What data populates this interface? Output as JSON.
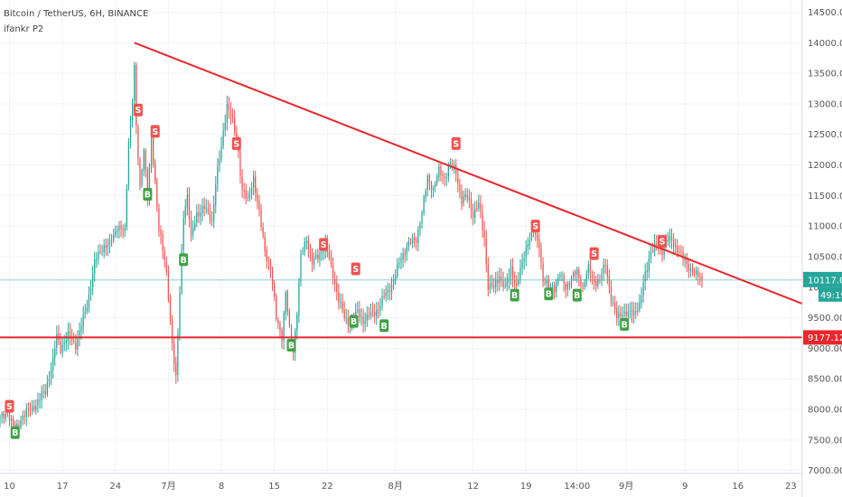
{
  "header": {
    "title": "Bitcoin / TetherUS, 6H, BINANCE",
    "indicator": "ifankr P2"
  },
  "colors": {
    "up": "#26a69a",
    "down": "#ef5350",
    "trendline": "#e8262b",
    "support": "#e8262b",
    "sell_tag": "#ef5350",
    "buy_tag": "#43a047",
    "current_price_line": "#26a69a",
    "grid": "#f0f3fa",
    "axis_text": "#555555"
  },
  "y_axis": {
    "ticks": [
      7000,
      7500,
      8000,
      8500,
      9000,
      9500,
      10000,
      10500,
      11000,
      11500,
      12000,
      12500,
      13000,
      13500,
      14000,
      14500
    ],
    "tick_labels": [
      "7000.00",
      "7500.00",
      "8000.00",
      "8500.00",
      "9000.00",
      "9500.00",
      "10000.00",
      "10500.00",
      "11000.00",
      "11500.00",
      "12000.00",
      "12500.00",
      "13000.00",
      "13500.00",
      "14000.00",
      "14500.00"
    ],
    "range": [
      6950,
      14700
    ]
  },
  "x_axis": {
    "tick_labels": [
      "10",
      "17",
      "24",
      "7月",
      "8",
      "15",
      "22",
      "8月",
      "12",
      "19",
      "14:00",
      "9月",
      "9",
      "16",
      "23"
    ],
    "tick_index": [
      5,
      33,
      61,
      89,
      117,
      145,
      173,
      209,
      250,
      278,
      305,
      331,
      362,
      390,
      418
    ]
  },
  "price_tags": {
    "current": "10117.06",
    "countdown": "49:19",
    "support": "9177.12"
  },
  "chart_data": {
    "type": "candlestick",
    "title": "Bitcoin / TetherUS, 6H, BINANCE",
    "current_price": 10117.06,
    "support_level": 9177.12,
    "trendline": {
      "from": [
        71,
        14000
      ],
      "to": [
        424,
        9730
      ]
    },
    "x_extent": [
      0,
      424
    ],
    "anchors": [
      [
        0,
        7850
      ],
      [
        4,
        7950
      ],
      [
        8,
        7650
      ],
      [
        12,
        7900
      ],
      [
        18,
        8050
      ],
      [
        24,
        8300
      ],
      [
        28,
        8800
      ],
      [
        30,
        9200
      ],
      [
        32,
        9000
      ],
      [
        36,
        9200
      ],
      [
        40,
        9050
      ],
      [
        46,
        9700
      ],
      [
        50,
        10400
      ],
      [
        54,
        10650
      ],
      [
        58,
        10700
      ],
      [
        62,
        11000
      ],
      [
        66,
        10900
      ],
      [
        68,
        12400
      ],
      [
        70,
        13100
      ],
      [
        71,
        13600
      ],
      [
        72,
        12600
      ],
      [
        74,
        11600
      ],
      [
        76,
        12300
      ],
      [
        78,
        11500
      ],
      [
        80,
        12400
      ],
      [
        84,
        11000
      ],
      [
        88,
        10200
      ],
      [
        91,
        9100
      ],
      [
        93,
        8500
      ],
      [
        95,
        9900
      ],
      [
        97,
        11200
      ],
      [
        99,
        11500
      ],
      [
        101,
        10800
      ],
      [
        104,
        11200
      ],
      [
        108,
        11300
      ],
      [
        112,
        11100
      ],
      [
        114,
        11700
      ],
      [
        117,
        12300
      ],
      [
        120,
        13000
      ],
      [
        123,
        12700
      ],
      [
        126,
        12200
      ],
      [
        128,
        11600
      ],
      [
        131,
        11400
      ],
      [
        134,
        11800
      ],
      [
        137,
        11200
      ],
      [
        140,
        10600
      ],
      [
        143,
        10300
      ],
      [
        146,
        9500
      ],
      [
        149,
        9200
      ],
      [
        151,
        9900
      ],
      [
        153,
        9300
      ],
      [
        155,
        8950
      ],
      [
        157,
        9600
      ],
      [
        159,
        10500
      ],
      [
        162,
        10800
      ],
      [
        165,
        10400
      ],
      [
        168,
        10500
      ],
      [
        172,
        10700
      ],
      [
        176,
        10200
      ],
      [
        179,
        9800
      ],
      [
        182,
        9500
      ],
      [
        186,
        9400
      ],
      [
        189,
        9600
      ],
      [
        192,
        9450
      ],
      [
        196,
        9550
      ],
      [
        200,
        9650
      ],
      [
        204,
        9900
      ],
      [
        208,
        10100
      ],
      [
        212,
        10500
      ],
      [
        216,
        10700
      ],
      [
        220,
        10800
      ],
      [
        223,
        11200
      ],
      [
        226,
        11800
      ],
      [
        229,
        11600
      ],
      [
        232,
        11900
      ],
      [
        235,
        11800
      ],
      [
        238,
        12000
      ],
      [
        241,
        11900
      ],
      [
        244,
        11400
      ],
      [
        247,
        11500
      ],
      [
        250,
        11200
      ],
      [
        253,
        11350
      ],
      [
        256,
        10800
      ],
      [
        258,
        10000
      ],
      [
        261,
        10000
      ],
      [
        264,
        10200
      ],
      [
        267,
        9950
      ],
      [
        270,
        10300
      ],
      [
        273,
        10000
      ],
      [
        276,
        10400
      ],
      [
        279,
        10750
      ],
      [
        282,
        10900
      ],
      [
        285,
        10700
      ],
      [
        287,
        10100
      ],
      [
        290,
        10000
      ],
      [
        293,
        10000
      ],
      [
        296,
        10200
      ],
      [
        299,
        10000
      ],
      [
        302,
        10150
      ],
      [
        305,
        10250
      ],
      [
        308,
        10000
      ],
      [
        311,
        10300
      ],
      [
        314,
        10100
      ],
      [
        317,
        10100
      ],
      [
        320,
        10400
      ],
      [
        323,
        9800
      ],
      [
        326,
        9500
      ],
      [
        329,
        9600
      ],
      [
        332,
        9550
      ],
      [
        335,
        9600
      ],
      [
        338,
        9700
      ],
      [
        341,
        10200
      ],
      [
        344,
        10600
      ],
      [
        347,
        10700
      ],
      [
        350,
        10600
      ],
      [
        353,
        10800
      ],
      [
        356,
        10700
      ],
      [
        359,
        10600
      ],
      [
        362,
        10400
      ],
      [
        365,
        10300
      ],
      [
        368,
        10200
      ],
      [
        371,
        10117
      ]
    ],
    "sell_signals": [
      {
        "i": 5,
        "price": 8050
      },
      {
        "i": 73,
        "price": 12900
      },
      {
        "i": 82,
        "price": 12550
      },
      {
        "i": 125,
        "price": 12350
      },
      {
        "i": 171,
        "price": 10700
      },
      {
        "i": 188,
        "price": 10300
      },
      {
        "i": 241,
        "price": 12350
      },
      {
        "i": 283,
        "price": 11000
      },
      {
        "i": 314,
        "price": 10550
      },
      {
        "i": 350,
        "price": 10750
      }
    ],
    "buy_signals": [
      {
        "i": 8,
        "price": 7620
      },
      {
        "i": 78,
        "price": 11520
      },
      {
        "i": 97,
        "price": 10450
      },
      {
        "i": 154,
        "price": 9050
      },
      {
        "i": 187,
        "price": 9440
      },
      {
        "i": 203,
        "price": 9370
      },
      {
        "i": 272,
        "price": 9870
      },
      {
        "i": 290,
        "price": 9890
      },
      {
        "i": 305,
        "price": 9870
      },
      {
        "i": 330,
        "price": 9390
      }
    ]
  }
}
